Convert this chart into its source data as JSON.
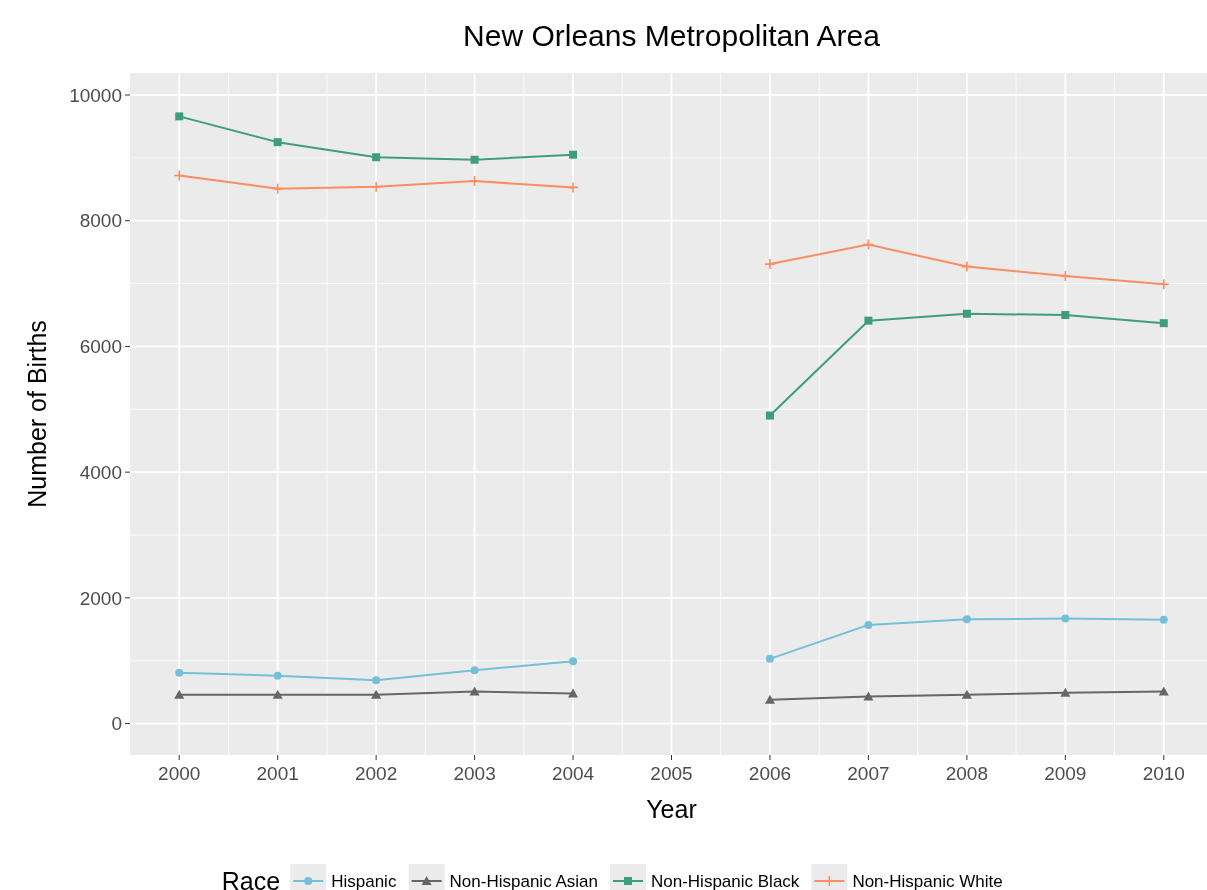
{
  "chart_data": {
    "type": "line",
    "title": "New Orleans Metropolitan Area",
    "xlabel": "Year",
    "ylabel": "Number of Births",
    "legend_title": "Race",
    "legend": "bottom",
    "grid": true,
    "x": [
      2000,
      2001,
      2002,
      2003,
      2004,
      2005,
      2006,
      2007,
      2008,
      2009,
      2010
    ],
    "xlim": [
      1999.5,
      2010.5
    ],
    "xticks": [
      2000,
      2001,
      2002,
      2003,
      2004,
      2005,
      2006,
      2007,
      2008,
      2009,
      2010
    ],
    "ylim": [
      -500,
      10350
    ],
    "yticks": [
      0,
      2000,
      4000,
      6000,
      8000,
      10000
    ],
    "series": [
      {
        "name": "Hispanic",
        "color": "#74c0d6",
        "marker": "circle",
        "values": [
          810,
          760,
          690,
          850,
          990,
          null,
          1030,
          1570,
          1660,
          1670,
          1650
        ]
      },
      {
        "name": "Non-Hispanic Asian",
        "color": "#666666",
        "marker": "triangle",
        "values": [
          460,
          460,
          460,
          510,
          480,
          null,
          380,
          430,
          460,
          490,
          510
        ]
      },
      {
        "name": "Non-Hispanic Black",
        "color": "#3e9e7c",
        "marker": "square",
        "values": [
          9660,
          9250,
          9010,
          8970,
          9050,
          null,
          4900,
          6410,
          6520,
          6500,
          6370
        ]
      },
      {
        "name": "Non-Hispanic White",
        "color": "#fc8d62",
        "marker": "cross",
        "values": [
          8720,
          8510,
          8540,
          8630,
          8530,
          null,
          7310,
          7620,
          7270,
          7120,
          6990
        ]
      }
    ]
  }
}
